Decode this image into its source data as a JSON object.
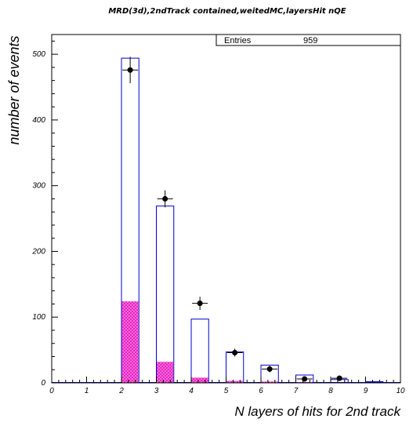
{
  "chart_data": {
    "type": "bar",
    "title": "MRD(3d),2ndTrack contained,weitedMC,layersHit nQE",
    "xlabel": "N layers of hits for 2nd track",
    "ylabel": "number of events",
    "xlim": [
      0,
      10
    ],
    "ylim": [
      0,
      530
    ],
    "x_ticks": [
      "0",
      "1",
      "2",
      "3",
      "4",
      "5",
      "6",
      "7",
      "8",
      "9",
      "10"
    ],
    "y_ticks": [
      "0",
      "100",
      "200",
      "300",
      "400",
      "500"
    ],
    "y_tick_values": [
      0,
      100,
      200,
      300,
      400,
      500
    ],
    "stats": {
      "label": "Entries",
      "value": "959"
    },
    "bin_width": 0.5,
    "series": [
      {
        "kind": "histogram",
        "bin_starts": [
          2.0,
          3.0,
          4.0,
          5.0,
          6.0,
          7.0,
          8.0,
          9.0
        ],
        "values": [
          494,
          269,
          97,
          47,
          27,
          12,
          5,
          2
        ]
      },
      {
        "kind": "hatched",
        "bin_starts": [
          2.0,
          3.0,
          4.0,
          5.0,
          6.0,
          7.0,
          8.0,
          9.0
        ],
        "values": [
          124,
          32,
          8,
          3,
          2,
          1,
          0,
          0
        ]
      },
      {
        "kind": "points",
        "x": [
          2.25,
          3.25,
          4.25,
          5.25,
          6.25,
          7.25,
          8.25
        ],
        "y": [
          476,
          280,
          121,
          46,
          21,
          6,
          7
        ],
        "yerr": [
          20,
          13,
          10,
          6,
          5,
          2,
          2
        ]
      }
    ],
    "colors": {
      "histogram_edge": "#0000cc",
      "hatch_fill": "#ff33cc",
      "points": "#000000"
    }
  }
}
